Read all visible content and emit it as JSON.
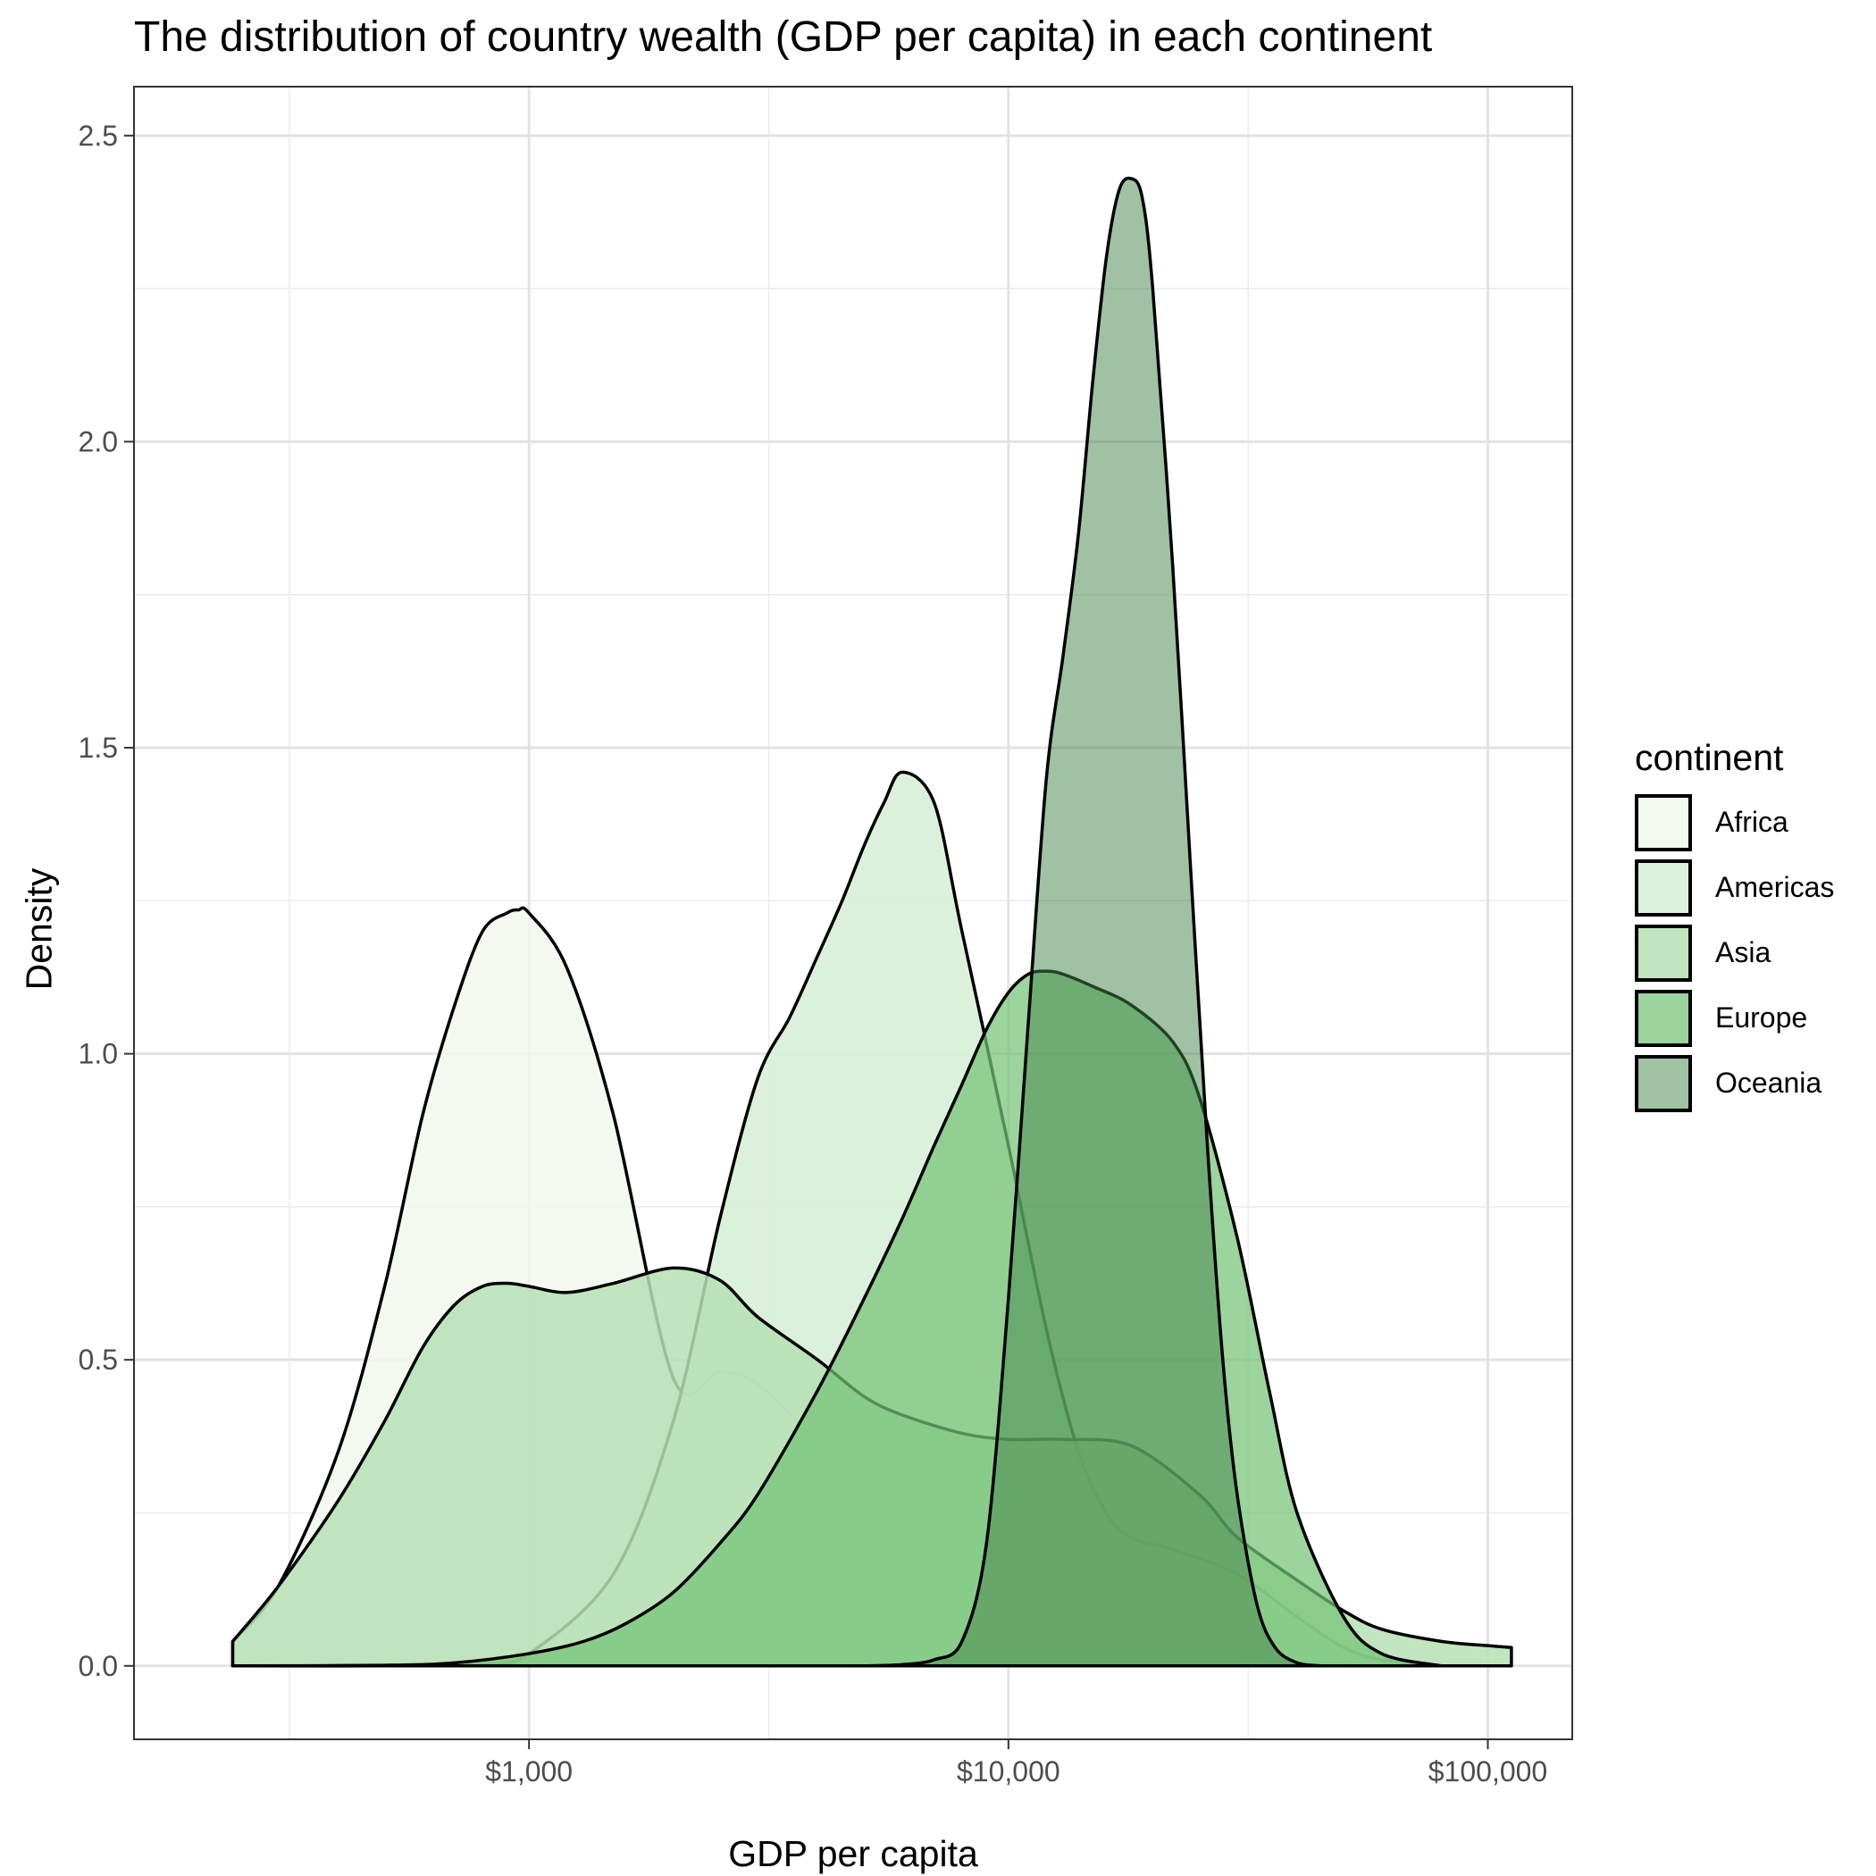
{
  "chart_data": {
    "type": "area",
    "title": "The distribution of country wealth (GDP per capita) in each continent",
    "xlabel": "GDP per capita",
    "ylabel": "Density",
    "x_scale": "log10",
    "xlim": [
      150,
      150000
    ],
    "ylim": [
      -0.12,
      2.58
    ],
    "x_ticks": [
      {
        "value": 1000,
        "label": "$1,000"
      },
      {
        "value": 10000,
        "label": "$10,000"
      },
      {
        "value": 100000,
        "label": "$100,000"
      }
    ],
    "y_ticks": [
      {
        "value": 0,
        "label": "0.0"
      },
      {
        "value": 0.5,
        "label": "0.5"
      },
      {
        "value": 1,
        "label": "1.0"
      },
      {
        "value": 1.5,
        "label": "1.5"
      },
      {
        "value": 2,
        "label": "2.0"
      },
      {
        "value": 2.5,
        "label": "2.5"
      }
    ],
    "grid": true,
    "legend": {
      "title": "continent",
      "placement": "right"
    },
    "series": [
      {
        "name": "Africa",
        "color": "#f1f8ef",
        "opacity": 0.85,
        "x": [
          241,
          300,
          400,
          500,
          600,
          700,
          800,
          900,
          950,
          1000,
          1200,
          1500,
          2000,
          2500,
          3000,
          4000,
          5000,
          6000,
          7000,
          10000,
          13000,
          18000,
          25000,
          35000,
          50000,
          70000
        ],
        "y": [
          0.04,
          0.13,
          0.35,
          0.62,
          0.9,
          1.08,
          1.2,
          1.23,
          1.235,
          1.23,
          1.14,
          0.9,
          0.47,
          0.48,
          0.46,
          0.36,
          0.25,
          0.19,
          0.17,
          0.14,
          0.1,
          0.06,
          0.03,
          0.01,
          0.003,
          0
        ]
      },
      {
        "name": "Americas",
        "color": "#d8efd8",
        "opacity": 0.9,
        "x": [
          241,
          500,
          800,
          1000,
          1500,
          2000,
          2500,
          3000,
          3500,
          4000,
          4500,
          5000,
          5500,
          6000,
          7000,
          8000,
          10000,
          12000,
          14000,
          16000,
          18000,
          22000,
          30000,
          40000,
          50000,
          60000,
          80000
        ],
        "y": [
          0,
          0,
          0.003,
          0.02,
          0.15,
          0.4,
          0.73,
          0.96,
          1.06,
          1.16,
          1.25,
          1.34,
          1.41,
          1.46,
          1.41,
          1.2,
          0.85,
          0.55,
          0.35,
          0.25,
          0.21,
          0.19,
          0.15,
          0.08,
          0.03,
          0.01,
          0
        ]
      },
      {
        "name": "Asia",
        "color": "#b6e1b4",
        "opacity": 0.85,
        "x": [
          241,
          300,
          400,
          500,
          600,
          700,
          800,
          900,
          1000,
          1200,
          1500,
          2000,
          2500,
          3000,
          4000,
          5000,
          6000,
          8000,
          10000,
          13000,
          18000,
          25000,
          30000,
          40000,
          50000,
          60000,
          80000,
          100000,
          112000,
          112000,
          241
        ],
        "y": [
          0.04,
          0.13,
          0.27,
          0.4,
          0.52,
          0.59,
          0.62,
          0.625,
          0.62,
          0.61,
          0.625,
          0.65,
          0.63,
          0.57,
          0.5,
          0.44,
          0.41,
          0.38,
          0.37,
          0.37,
          0.36,
          0.28,
          0.21,
          0.14,
          0.09,
          0.06,
          0.04,
          0.033,
          0.03,
          0,
          0
        ]
      },
      {
        "name": "Europe",
        "color": "#74c476",
        "opacity": 0.72,
        "x": [
          241,
          500,
          700,
          1000,
          1300,
          1600,
          2000,
          2500,
          3000,
          4000,
          5000,
          6000,
          7000,
          8000,
          9000,
          10000,
          11000,
          12000,
          13000,
          15000,
          18000,
          22000,
          25000,
          30000,
          35000,
          40000,
          50000,
          60000,
          80000
        ],
        "y": [
          0,
          0.001,
          0.005,
          0.02,
          0.04,
          0.07,
          0.12,
          0.2,
          0.28,
          0.45,
          0.6,
          0.73,
          0.85,
          0.95,
          1.04,
          1.1,
          1.13,
          1.135,
          1.13,
          1.11,
          1.08,
          1.02,
          0.93,
          0.7,
          0.45,
          0.25,
          0.08,
          0.02,
          0
        ]
      },
      {
        "name": "Oceania",
        "color": "#41844a",
        "opacity": 0.5,
        "x": [
          5000,
          6000,
          7000,
          8000,
          9000,
          10000,
          11000,
          12000,
          13000,
          14000,
          15000,
          16000,
          17000,
          18000,
          19000,
          20000,
          22000,
          24000,
          26000,
          28000,
          30000,
          33000,
          36000,
          40000,
          45000
        ],
        "y": [
          0,
          0.002,
          0.01,
          0.04,
          0.2,
          0.6,
          1.05,
          1.45,
          1.65,
          1.85,
          2.1,
          2.3,
          2.41,
          2.43,
          2.4,
          2.25,
          1.8,
          1.3,
          0.85,
          0.5,
          0.28,
          0.1,
          0.03,
          0.005,
          0
        ]
      }
    ]
  }
}
